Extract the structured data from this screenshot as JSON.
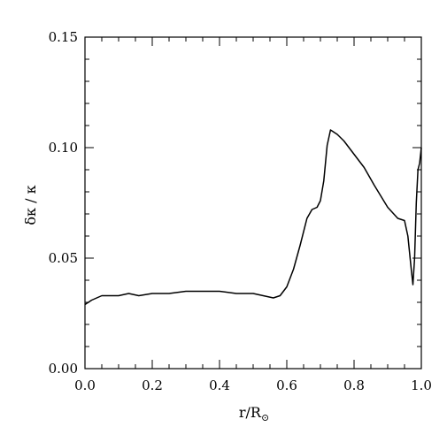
{
  "chart_data": {
    "type": "line",
    "title": "",
    "xlabel": "r/R",
    "xlabel_subscript": "⊙",
    "ylabel": "δκ / κ",
    "xlim": [
      0.0,
      1.0
    ],
    "ylim": [
      0.0,
      0.15
    ],
    "x_ticks": [
      "0.0",
      "0.2",
      "0.4",
      "0.6",
      "0.8",
      "1.0"
    ],
    "y_ticks": [
      "0.00",
      "0.05",
      "0.10",
      "0.15"
    ],
    "grid": false,
    "series": [
      {
        "x": [
          0.0,
          0.02,
          0.05,
          0.08,
          0.1,
          0.13,
          0.16,
          0.2,
          0.25,
          0.3,
          0.35,
          0.4,
          0.45,
          0.5,
          0.53,
          0.56,
          0.58,
          0.6,
          0.62,
          0.64,
          0.66,
          0.675,
          0.69,
          0.7,
          0.71,
          0.72,
          0.73,
          0.75,
          0.77,
          0.8,
          0.83,
          0.86,
          0.9,
          0.93,
          0.95,
          0.96,
          0.97,
          0.975,
          0.98,
          0.985,
          0.99,
          0.995,
          1.0
        ],
        "y": [
          0.029,
          0.031,
          0.033,
          0.033,
          0.033,
          0.034,
          0.033,
          0.034,
          0.034,
          0.035,
          0.035,
          0.035,
          0.034,
          0.034,
          0.033,
          0.032,
          0.033,
          0.037,
          0.045,
          0.056,
          0.068,
          0.072,
          0.073,
          0.076,
          0.085,
          0.101,
          0.108,
          0.106,
          0.103,
          0.097,
          0.091,
          0.083,
          0.073,
          0.068,
          0.067,
          0.06,
          0.045,
          0.038,
          0.05,
          0.075,
          0.09,
          0.093,
          0.1
        ]
      }
    ]
  }
}
